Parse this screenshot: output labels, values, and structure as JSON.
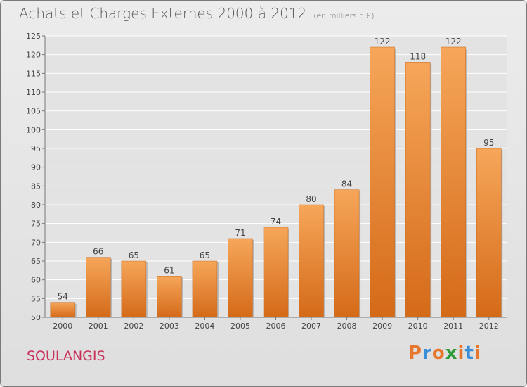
{
  "header": {
    "title": "Achats et Charges Externes 2000 à 2012",
    "unit": "(en milliers d'€)"
  },
  "footer": {
    "commune": "SOULANGIS",
    "logo_text": "Proxiti"
  },
  "colors": {
    "bar_top": "#f6a65a",
    "bar_bottom": "#d46a18",
    "commune": "#c8305a",
    "logo_letters": [
      "#e8772e",
      "#3a8ed8",
      "#e8772e",
      "#2e9a3a",
      "#e8772e",
      "#3a8ed8",
      "#e8772e"
    ]
  },
  "chart_data": {
    "type": "bar",
    "categories": [
      "2000",
      "2001",
      "2002",
      "2003",
      "2004",
      "2005",
      "2006",
      "2007",
      "2008",
      "2009",
      "2010",
      "2011",
      "2012"
    ],
    "values": [
      54,
      66,
      65,
      61,
      65,
      71,
      74,
      80,
      84,
      122,
      118,
      122,
      95
    ],
    "title": "Achats et Charges Externes 2000 à 2012",
    "ylim": [
      50,
      125
    ],
    "yticks": [
      50,
      55,
      60,
      65,
      70,
      75,
      80,
      85,
      90,
      95,
      100,
      105,
      110,
      115,
      120,
      125
    ],
    "grid": true,
    "data_labels": true
  }
}
